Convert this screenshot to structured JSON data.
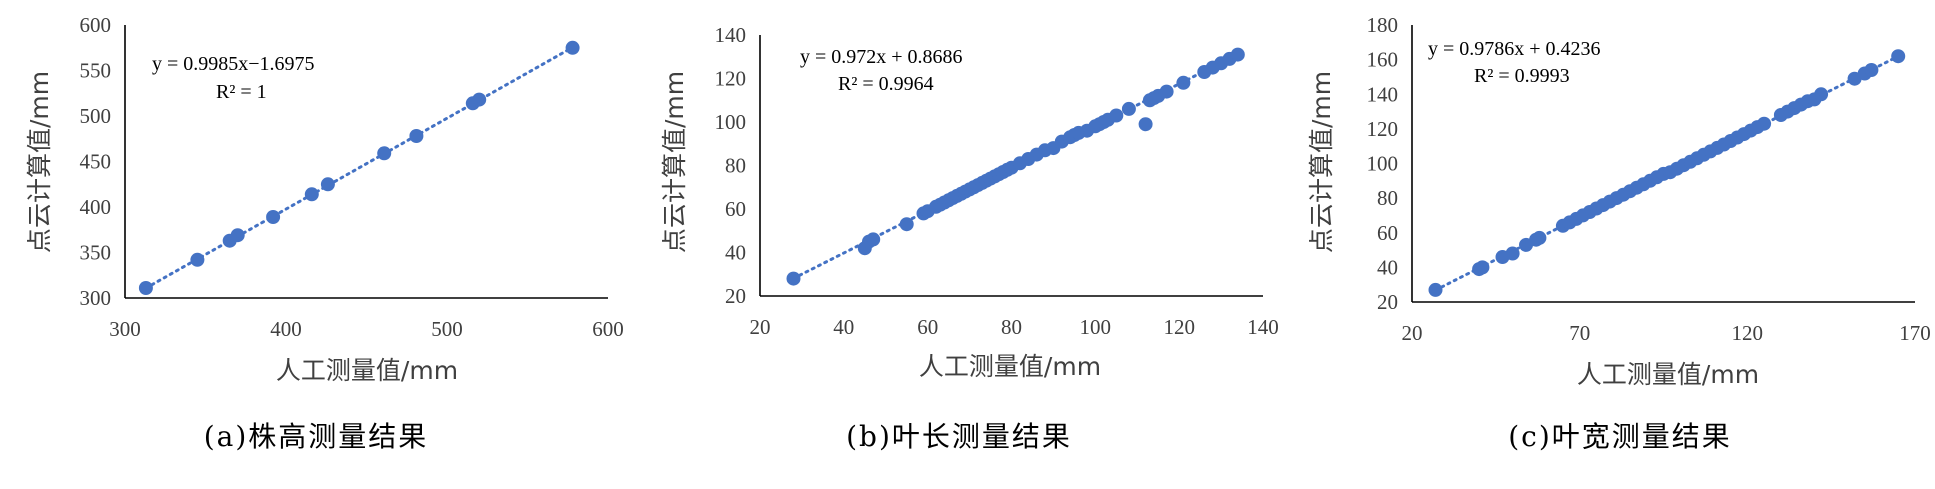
{
  "chart_data": [
    {
      "type": "scatter",
      "caption": "(a)株高测量结果",
      "xlabel": "人工测量值/mm",
      "ylabel": "点云计算值/mm",
      "xlim": [
        300,
        600
      ],
      "ylim": [
        300,
        600
      ],
      "xticks": [
        "300",
        "400",
        "500",
        "600"
      ],
      "yticks": [
        "300",
        "350",
        "400",
        "450",
        "500",
        "550",
        "600"
      ],
      "equation": "y = 0.9985x−1.6975",
      "r2": "R² = 1",
      "trendline": {
        "slope": 0.9985,
        "intercept": -1.6975
      },
      "x": [
        313,
        345,
        365,
        370,
        392,
        416,
        426,
        461,
        481,
        516,
        520,
        578
      ],
      "y": [
        311,
        342,
        363,
        369,
        389,
        414,
        425,
        459,
        478,
        514,
        518,
        575
      ]
    },
    {
      "type": "scatter",
      "caption": "(b)叶长测量结果",
      "xlabel": "人工测量值/mm",
      "ylabel": "点云计算值/mm",
      "xlim": [
        20,
        140
      ],
      "ylim": [
        20,
        140
      ],
      "xticks": [
        "20",
        "40",
        "60",
        "80",
        "100",
        "120",
        "140"
      ],
      "yticks": [
        "20",
        "40",
        "60",
        "80",
        "100",
        "120",
        "140"
      ],
      "equation": "y = 0.972x + 0.8686",
      "r2": "R² = 0.9964",
      "trendline": {
        "slope": 0.972,
        "intercept": 0.8686
      },
      "x": [
        28,
        45,
        46,
        47,
        55,
        59,
        60,
        62,
        63,
        64,
        65,
        66,
        67,
        68,
        69,
        70,
        71,
        72,
        73,
        74,
        75,
        76,
        77,
        78,
        79,
        80,
        82,
        84,
        86,
        88,
        90,
        92,
        94,
        95,
        96,
        98,
        100,
        101,
        102,
        103,
        105,
        108,
        112,
        113,
        114,
        115,
        117,
        121,
        126,
        128,
        130,
        132,
        134
      ],
      "y": [
        28,
        42,
        45,
        46,
        53,
        58,
        59,
        61,
        62,
        63,
        64,
        65,
        66,
        67,
        68,
        69,
        70,
        71,
        72,
        73,
        74,
        75,
        76,
        77,
        78,
        79,
        81,
        83,
        85,
        87,
        88,
        91,
        93,
        94,
        95,
        96,
        98,
        99,
        100,
        101,
        103,
        106,
        99,
        110,
        111,
        112,
        114,
        118,
        123,
        125,
        127,
        129,
        131
      ]
    },
    {
      "type": "scatter",
      "caption": "(c)叶宽测量结果",
      "xlabel": "人工测量值/mm",
      "ylabel": "点云计算值/mm",
      "xlim": [
        20,
        170
      ],
      "ylim": [
        20,
        180
      ],
      "xticks": [
        "20",
        "70",
        "120",
        "170"
      ],
      "yticks": [
        "20",
        "40",
        "60",
        "80",
        "100",
        "120",
        "140",
        "160",
        "180"
      ],
      "equation": "y = 0.9786x + 0.4236",
      "r2": "R² = 0.9993",
      "trendline": {
        "slope": 0.9786,
        "intercept": 0.4236
      },
      "x": [
        27,
        40,
        41,
        47,
        50,
        54,
        57,
        58,
        65,
        67,
        69,
        71,
        73,
        75,
        77,
        79,
        81,
        83,
        85,
        87,
        89,
        91,
        93,
        95,
        97,
        99,
        101,
        103,
        105,
        107,
        109,
        111,
        113,
        115,
        117,
        119,
        121,
        123,
        125,
        130,
        132,
        134,
        136,
        138,
        140,
        142,
        152,
        155,
        157,
        165
      ],
      "y": [
        27,
        39,
        40,
        46,
        48,
        53,
        56,
        57,
        64,
        66,
        68,
        70,
        72,
        74,
        76,
        78,
        80,
        82,
        84,
        86,
        88,
        90,
        92,
        94,
        95,
        97,
        99,
        101,
        103,
        105,
        107,
        109,
        111,
        113,
        115,
        117,
        119,
        121,
        123,
        128,
        130,
        132,
        134,
        136,
        137,
        140,
        149,
        152,
        154,
        162
      ]
    }
  ]
}
